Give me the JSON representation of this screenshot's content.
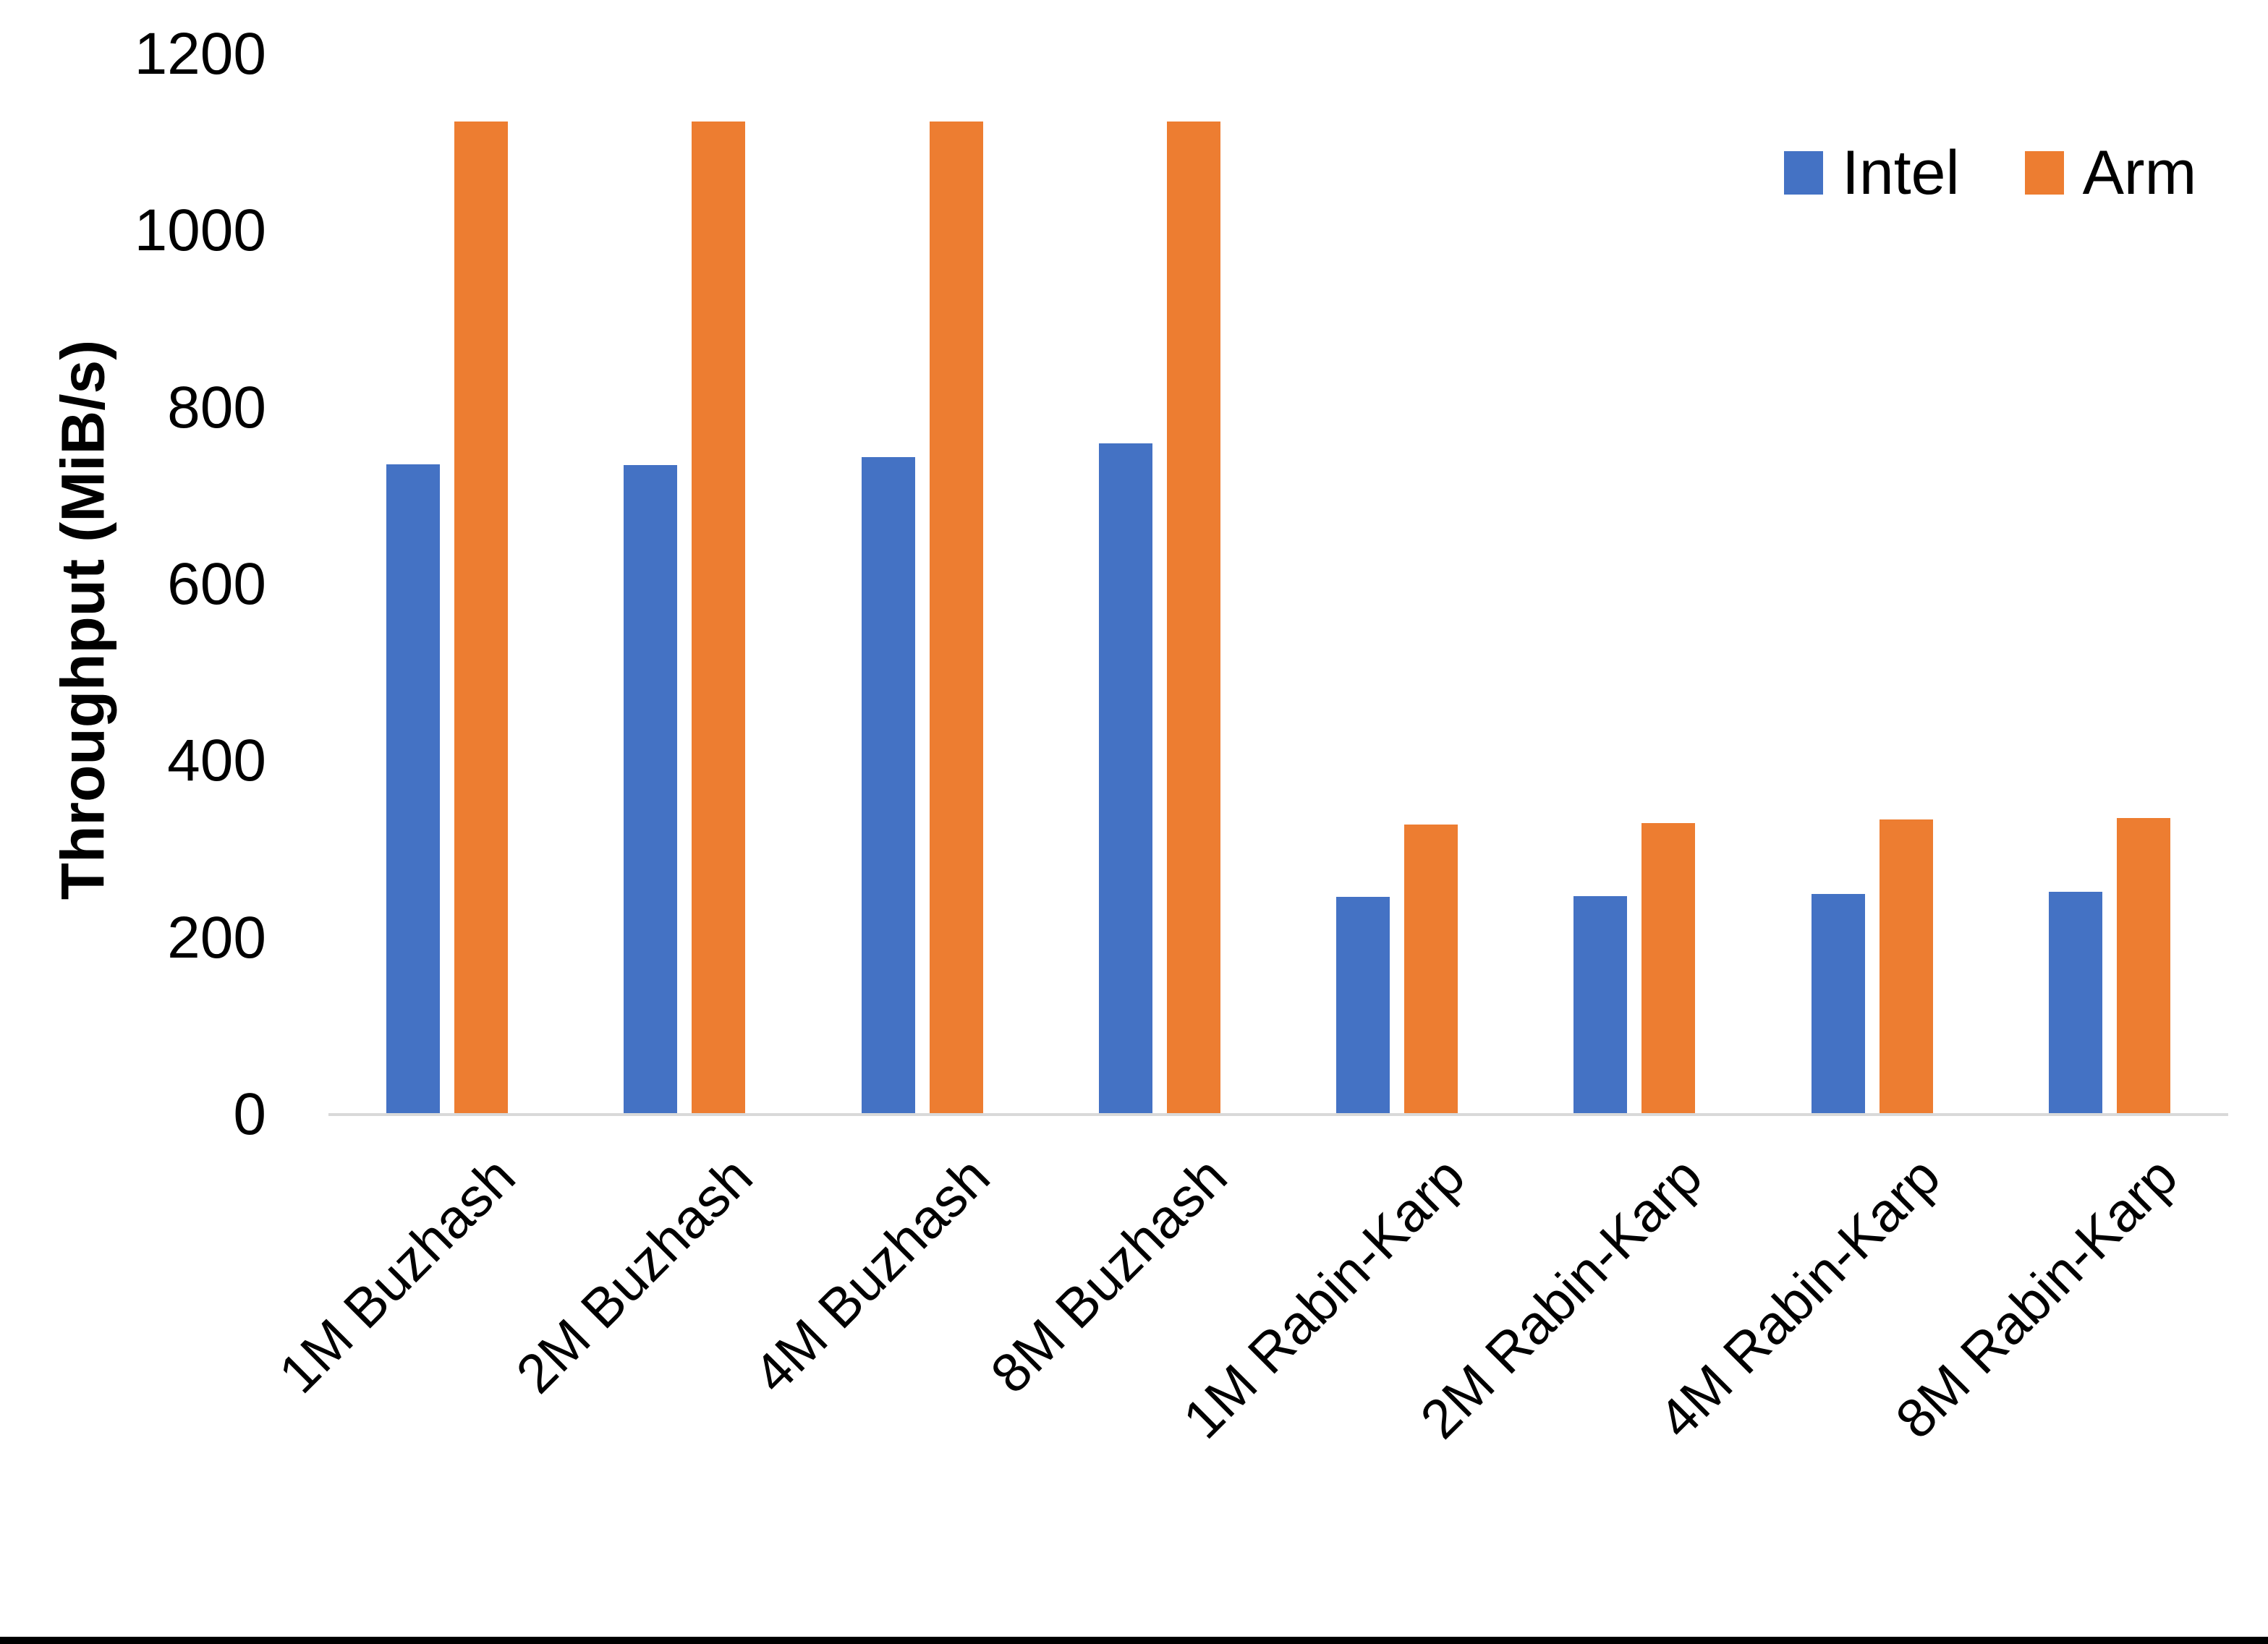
{
  "chart_data": {
    "type": "bar",
    "title": "",
    "ylabel": "Throughput (MiB/s)",
    "xlabel": "",
    "categories": [
      "1M Buzhash",
      "2M Buzhash",
      "4M Buzhash",
      "8M Buzhash",
      "1M Rabin-Karp",
      "2M Rabin-Karp",
      "4M Rabin-Karp",
      "8M Rabin-Karp"
    ],
    "series": [
      {
        "name": "Intel",
        "color": "#4472C4",
        "values": [
          736,
          735,
          744,
          760,
          246,
          247,
          250,
          252
        ]
      },
      {
        "name": "Arm",
        "color": "#ED7D31",
        "values": [
          1124,
          1124,
          1124,
          1124,
          328,
          330,
          334,
          336
        ]
      }
    ],
    "ylim": [
      0,
      1200
    ],
    "yticks": [
      "0",
      "200",
      "400",
      "600",
      "800",
      "1000",
      "1200"
    ],
    "grid": false,
    "legend_position": "top-right",
    "axis_line_color": "#D9D9D9",
    "text_color": "#000000"
  }
}
